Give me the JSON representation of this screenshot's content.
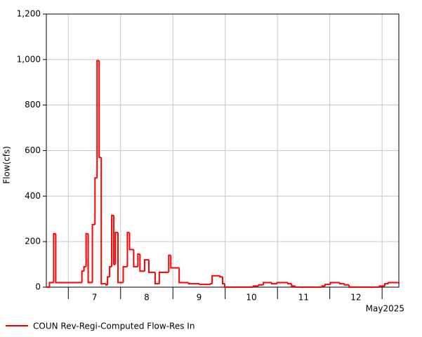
{
  "chart_data": {
    "type": "step-line",
    "ylabel": "Flow(cfs)",
    "xlabel": "May2025",
    "ylim": [
      0,
      1200
    ],
    "yticks": [
      0,
      200,
      400,
      600,
      800,
      {
        "value": 1000,
        "label": "1,000"
      },
      {
        "value": 1200,
        "label": "1,200"
      }
    ],
    "xlim": [
      6.58,
      13.32
    ],
    "xticks": [
      {
        "value": 7.5,
        "label": "7"
      },
      {
        "value": 8.5,
        "label": "8"
      },
      {
        "value": 9.5,
        "label": "9"
      },
      {
        "value": 10.5,
        "label": "10"
      },
      {
        "value": 11.5,
        "label": "11"
      },
      {
        "value": 12.5,
        "label": "12"
      }
    ],
    "xgrid": [
      7,
      8,
      9,
      10,
      11,
      12,
      13
    ],
    "grid": true,
    "legend": "bottom",
    "x": [
      6.58,
      6.64,
      6.72,
      6.76,
      7.26,
      7.3,
      7.34,
      7.38,
      7.46,
      7.51,
      7.55,
      7.59,
      7.63,
      7.72,
      7.75,
      7.79,
      7.83,
      7.87,
      7.9,
      7.95,
      8.05,
      8.13,
      8.17,
      8.25,
      8.33,
      8.37,
      8.46,
      8.54,
      8.66,
      8.74,
      8.92,
      8.96,
      9.12,
      9.3,
      9.51,
      9.72,
      9.75,
      9.9,
      9.95,
      9.99,
      10.54,
      10.64,
      10.73,
      10.89,
      10.99,
      11.2,
      11.27,
      11.34,
      11.85,
      11.91,
      12.01,
      12.19,
      12.28,
      12.37,
      12.95,
      13.05,
      13.12,
      13.28,
      13.32
    ],
    "series": [
      {
        "name": "COUN Rev-Regi-Computed Flow-Res In",
        "color": "#ff0000",
        "values": [
          0,
          20,
          235,
          20,
          70,
          90,
          235,
          20,
          275,
          480,
          995,
          570,
          15,
          10,
          45,
          90,
          315,
          100,
          240,
          20,
          90,
          240,
          165,
          90,
          145,
          70,
          120,
          65,
          15,
          65,
          140,
          85,
          20,
          15,
          12,
          15,
          50,
          45,
          15,
          0,
          5,
          10,
          20,
          15,
          20,
          15,
          5,
          0,
          5,
          12,
          20,
          15,
          10,
          0,
          5,
          15,
          20,
          20,
          15
        ]
      }
    ]
  }
}
